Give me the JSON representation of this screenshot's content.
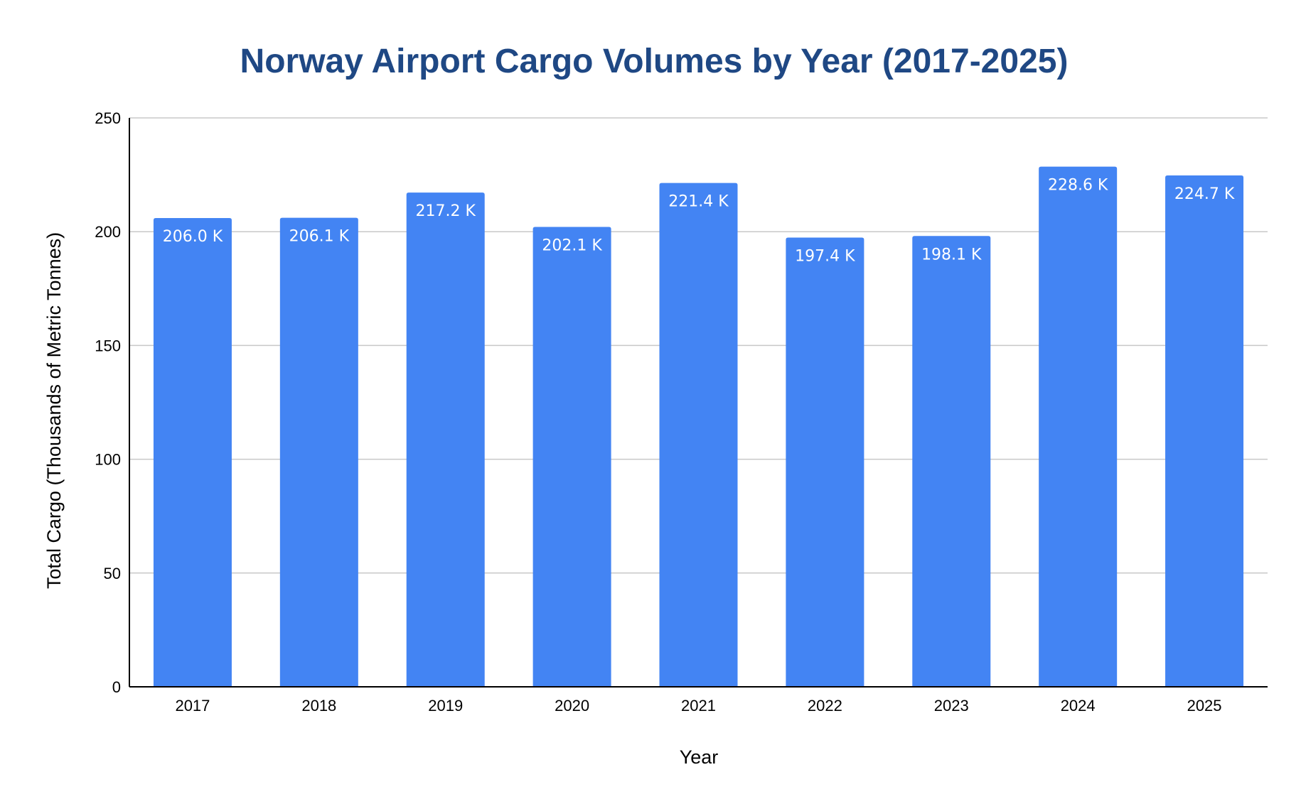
{
  "colors": {
    "bar": "#4384F3",
    "title": "#1F4884",
    "grid": "#C8C8C8",
    "axis": "#000000",
    "data_label": "#FFFFFF"
  },
  "chart_data": {
    "type": "bar",
    "title": "Norway Airport Cargo Volumes by Year (2017-2025)",
    "xlabel": "Year",
    "ylabel": "Total Cargo (Thousands of Metric Tonnes)",
    "categories": [
      "2017",
      "2018",
      "2019",
      "2020",
      "2021",
      "2022",
      "2023",
      "2024",
      "2025"
    ],
    "values": [
      206.0,
      206.1,
      217.2,
      202.1,
      221.4,
      197.4,
      198.1,
      228.6,
      224.7
    ],
    "data_labels": [
      "206.0 K",
      "206.1 K",
      "217.2 K",
      "202.1 K",
      "221.4 K",
      "197.4 K",
      "198.1 K",
      "228.6 K",
      "224.7 K"
    ],
    "ylim": [
      0,
      250
    ],
    "yticks": [
      0,
      50,
      100,
      150,
      200,
      250
    ],
    "grid": true,
    "legend": "none"
  }
}
